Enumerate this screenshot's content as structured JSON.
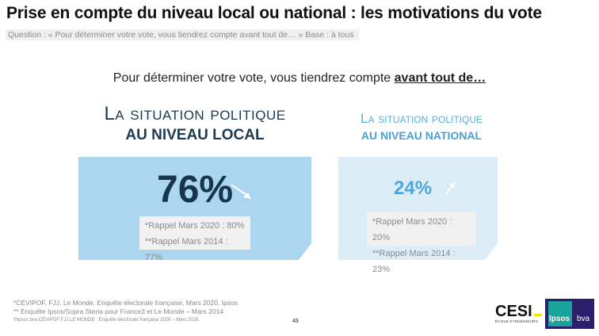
{
  "title": "Prise en compte du niveau local ou national : les motivations du vote",
  "question": "Question : « Pour déterminer votre vote, vous tiendrez compte avant tout de… » Base : à tous",
  "lead": {
    "text": "Pour déterminer votre vote, vous tiendrez compte ",
    "emphasis": "avant tout de…"
  },
  "local": {
    "heading1": "La situation politique",
    "heading2": "AU NIVEAU LOCAL",
    "value": "76%",
    "trend": "down",
    "recall_2020": "*Rappel Mars 2020 : 80%",
    "recall_2014": "**Rappel Mars 2014 : 77%",
    "color": "#acd6ef"
  },
  "national": {
    "heading1": "La situation politique",
    "heading2": "AU NIVEAU NATIONAL",
    "value": "24%",
    "trend": "up",
    "recall_2020": "*Rappel Mars 2020 : 20%",
    "recall_2014": "**Rappel Mars 2014 : 23%",
    "color": "#dcedf8"
  },
  "footer": {
    "note1": "*CEVIPOF, FJJ, Le Monde, Enquête électorale française, Mars 2020, Ipsos",
    "note2": "** Enquête Ipsos/Sopra Steria pour France3 et Le Monde – Mars 2014",
    "copyright": "©Ipsos bva  CEVIPOF FJJ LE MONDE : Enquête électorale française 2026 – Mars 2026",
    "page": "43"
  },
  "logos": {
    "cesi": "CESI",
    "cesi_sub": "ÉCOLE D'INGÉNIEURS",
    "ipsos": "Ipsos",
    "bva": "bva"
  }
}
